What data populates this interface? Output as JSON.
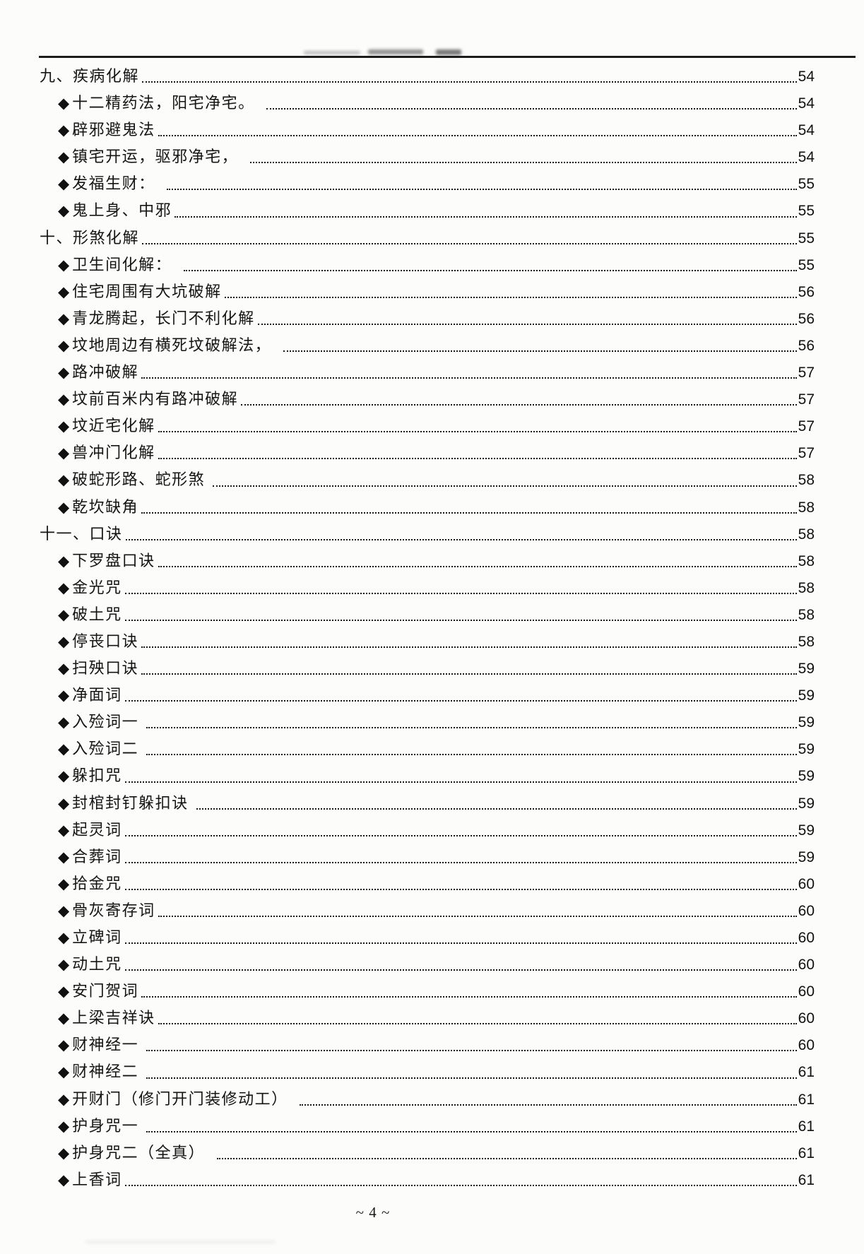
{
  "page": {
    "footer": "~ 4 ~"
  },
  "toc": {
    "bullet": "◆",
    "entries": [
      {
        "level": 1,
        "label": "九、疾病化解",
        "page": "54"
      },
      {
        "level": 2,
        "label": "十二精药法，阳宅净宅。　",
        "page": "54"
      },
      {
        "level": 2,
        "label": "辟邪避鬼法",
        "page": "54"
      },
      {
        "level": 2,
        "label": "镇宅开运，驱邪净宅，　",
        "page": "54"
      },
      {
        "level": 2,
        "label": "发福生财：　",
        "page": "55"
      },
      {
        "level": 2,
        "label": "鬼上身、中邪",
        "page": "55"
      },
      {
        "level": 1,
        "label": "十、形煞化解",
        "page": "55"
      },
      {
        "level": 2,
        "label": "卫生间化解：　",
        "page": "55"
      },
      {
        "level": 2,
        "label": "住宅周围有大坑破解",
        "page": "56"
      },
      {
        "level": 2,
        "label": "青龙腾起，长门不利化解",
        "page": "56"
      },
      {
        "level": 2,
        "label": "坟地周边有横死坟破解法，　",
        "page": "56"
      },
      {
        "level": 2,
        "label": "路冲破解",
        "page": "57"
      },
      {
        "level": 2,
        "label": "坟前百米内有路冲破解",
        "page": "57"
      },
      {
        "level": 2,
        "label": "坟近宅化解",
        "page": "57"
      },
      {
        "level": 2,
        "label": "兽冲门化解",
        "page": "57"
      },
      {
        "level": 2,
        "label": "破蛇形路、蛇形煞 ",
        "page": "58"
      },
      {
        "level": 2,
        "label": "乾坎缺角",
        "page": "58"
      },
      {
        "level": 1,
        "label": "十一、口诀",
        "page": "58"
      },
      {
        "level": 2,
        "label": "下罗盘口诀",
        "page": "58"
      },
      {
        "level": 2,
        "label": "金光咒",
        "page": "58"
      },
      {
        "level": 2,
        "label": "破土咒",
        "page": "58"
      },
      {
        "level": 2,
        "label": "停丧口诀",
        "page": "58"
      },
      {
        "level": 2,
        "label": "扫殃口诀",
        "page": "59"
      },
      {
        "level": 2,
        "label": "净面词",
        "page": "59"
      },
      {
        "level": 2,
        "label": "入殓词一 ",
        "page": "59"
      },
      {
        "level": 2,
        "label": "入殓词二 ",
        "page": "59"
      },
      {
        "level": 2,
        "label": "躲扣咒",
        "page": "59"
      },
      {
        "level": 2,
        "label": "封棺封钉躲扣诀 ",
        "page": "59"
      },
      {
        "level": 2,
        "label": "起灵词",
        "page": "59"
      },
      {
        "level": 2,
        "label": "合葬词",
        "page": "59"
      },
      {
        "level": 2,
        "label": "拾金咒",
        "page": "60"
      },
      {
        "level": 2,
        "label": "骨灰寄存词",
        "page": "60"
      },
      {
        "level": 2,
        "label": "立碑词",
        "page": "60"
      },
      {
        "level": 2,
        "label": "动土咒",
        "page": "60"
      },
      {
        "level": 2,
        "label": "安门贺词",
        "page": "60"
      },
      {
        "level": 2,
        "label": "上梁吉祥诀",
        "page": "60"
      },
      {
        "level": 2,
        "label": "财神经一 ",
        "page": "60"
      },
      {
        "level": 2,
        "label": "财神经二 ",
        "page": "61"
      },
      {
        "level": 2,
        "label": "开财门（修门开门装修动工）　",
        "page": "61"
      },
      {
        "level": 2,
        "label": "护身咒一 ",
        "page": "61"
      },
      {
        "level": 2,
        "label": "护身咒二（全真）　",
        "page": "61"
      },
      {
        "level": 2,
        "label": "上香词",
        "page": "61"
      }
    ]
  }
}
